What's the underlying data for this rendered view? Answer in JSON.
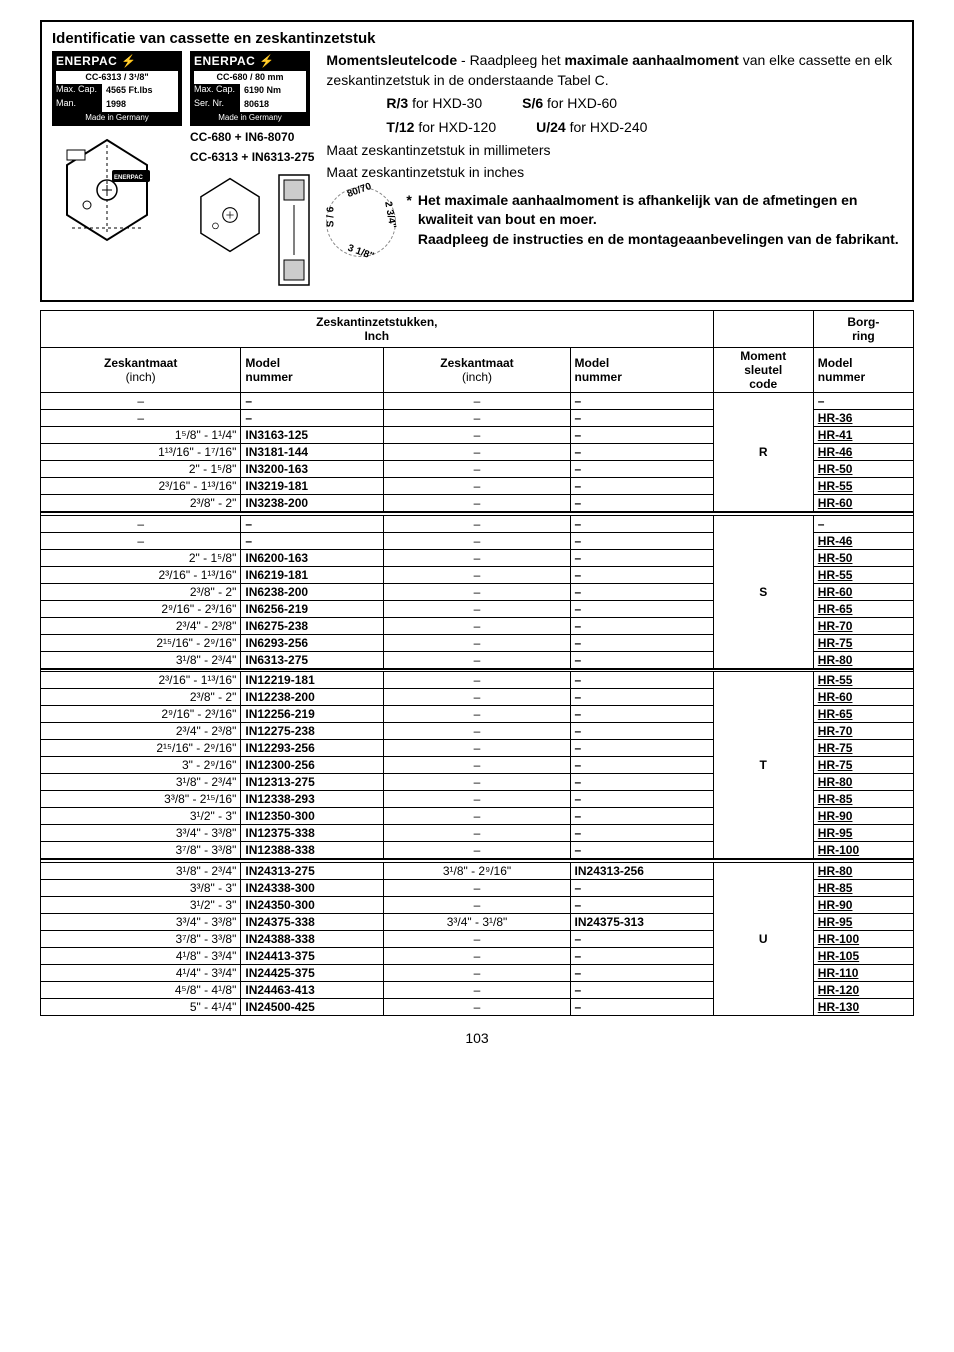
{
  "frame": {
    "title": "Identificatie van cassette en zeskantinzetstuk",
    "label1": {
      "logo": "ENERPAC ⚡",
      "line1_v": "CC-6313 / 3¹/8\"",
      "line2_k": "Max. Cap.",
      "line2_v": "4565 Ft.lbs",
      "line3_k": "Man.",
      "line3_v": "1998",
      "made": "Made in Germany"
    },
    "label2": {
      "logo": "ENERPAC ⚡",
      "line1_v": "CC-680 / 80 mm",
      "line2_k": "Max. Cap.",
      "line2_v": "6190 Nm",
      "line3_k": "Ser. Nr.",
      "line3_v": "80618",
      "made": "Made in Germany"
    },
    "cc1": "CC-680 + IN6-8070",
    "cc2": "CC-6313 + IN6313-275",
    "info_line1a": "Momentsleutelcode",
    "info_line1b": " - Raadpleeg het ",
    "info_line1c": "maximale aanhaalmoment",
    "info_line1d": " van elke cassette en elk zeskantinzetstuk in de onderstaande Tabel C.",
    "codes": {
      "r": "R/3",
      "r_for": " for HXD-30",
      "s": "S/6",
      "s_for": " for HXD-60",
      "t": "T/12",
      "t_for": " for HXD-120",
      "u": "U/24",
      "u_for": " for HXD-240"
    },
    "maat_mm": "Maat zeskantinzetstuk in millimeters",
    "maat_in": "Maat zeskantinzetstuk in inches",
    "dim": {
      "top": "80/70",
      "left": "S / 6",
      "right": "2 3/4\"",
      "bottom": "3 1/8\""
    },
    "star": "*",
    "note": "Het maximale aanhaalmoment is afhankelijk van de afmetingen en kwaliteit van bout en moer.\nRaadpleeg de instructies en de montageaanbevelingen van de fabrikant."
  },
  "table": {
    "hdr_zesk": "Zeskantinzetstukken,\nInch",
    "hdr_borg": "Borg-\nring",
    "col_zesk": "Zeskantmaat",
    "col_inch": "(inch)",
    "col_model": "Model\nnummer",
    "col_moment": "Moment\nsleutel\ncode",
    "groups": [
      {
        "wrench": "R",
        "rows": [
          {
            "s1": "–",
            "m1": "–",
            "s2": "–",
            "m2": "–",
            "r": "–"
          },
          {
            "s1": "–",
            "m1": "–",
            "s2": "–",
            "m2": "–",
            "r": "HR-36"
          },
          {
            "s1": "1⁵/8\" - 1¹/4\"",
            "m1": "IN3163-125",
            "s2": "–",
            "m2": "–",
            "r": "HR-41"
          },
          {
            "s1": "1¹³/16\" - 1⁷/16\"",
            "m1": "IN3181-144",
            "s2": "–",
            "m2": "–",
            "r": "HR-46"
          },
          {
            "s1": "2\" - 1⁵/8\"",
            "m1": "IN3200-163",
            "s2": "–",
            "m2": "–",
            "r": "HR-50"
          },
          {
            "s1": "2³/16\" - 1¹³/16\"",
            "m1": "IN3219-181",
            "s2": "–",
            "m2": "–",
            "r": "HR-55"
          },
          {
            "s1": "2³/8\" - 2\"",
            "m1": "IN3238-200",
            "s2": "–",
            "m2": "–",
            "r": "HR-60"
          }
        ]
      },
      {
        "wrench": "S",
        "rows": [
          {
            "s1": "–",
            "m1": "–",
            "s2": "–",
            "m2": "–",
            "r": "–"
          },
          {
            "s1": "–",
            "m1": "–",
            "s2": "–",
            "m2": "–",
            "r": "HR-46"
          },
          {
            "s1": "2\" - 1⁵/8\"",
            "m1": "IN6200-163",
            "s2": "–",
            "m2": "–",
            "r": "HR-50"
          },
          {
            "s1": "2³/16\" - 1¹³/16\"",
            "m1": "IN6219-181",
            "s2": "–",
            "m2": "–",
            "r": "HR-55"
          },
          {
            "s1": "2³/8\" - 2\"",
            "m1": "IN6238-200",
            "s2": "–",
            "m2": "–",
            "r": "HR-60"
          },
          {
            "s1": "2⁹/16\" - 2³/16\"",
            "m1": "IN6256-219",
            "s2": "–",
            "m2": "–",
            "r": "HR-65"
          },
          {
            "s1": "2³/4\" - 2³/8\"",
            "m1": "IN6275-238",
            "s2": "–",
            "m2": "–",
            "r": "HR-70"
          },
          {
            "s1": "2¹⁵/16\" - 2⁹/16\"",
            "m1": "IN6293-256",
            "s2": "–",
            "m2": "–",
            "r": "HR-75"
          },
          {
            "s1": "3¹/8\" - 2³/4\"",
            "m1": "IN6313-275",
            "s2": "–",
            "m2": "–",
            "r": "HR-80"
          }
        ]
      },
      {
        "wrench": "T",
        "rows": [
          {
            "s1": "2³/16\" - 1¹³/16\"",
            "m1": "IN12219-181",
            "s2": "–",
            "m2": "–",
            "r": "HR-55"
          },
          {
            "s1": "2³/8\" - 2\"",
            "m1": "IN12238-200",
            "s2": "–",
            "m2": "–",
            "r": "HR-60"
          },
          {
            "s1": "2⁹/16\" - 2³/16\"",
            "m1": "IN12256-219",
            "s2": "–",
            "m2": "–",
            "r": "HR-65"
          },
          {
            "s1": "2³/4\" - 2³/8\"",
            "m1": "IN12275-238",
            "s2": "–",
            "m2": "–",
            "r": "HR-70"
          },
          {
            "s1": "2¹⁵/16\" - 2⁹/16\"",
            "m1": "IN12293-256",
            "s2": "–",
            "m2": "–",
            "r": "HR-75"
          },
          {
            "s1": "3\" - 2⁹/16\"",
            "m1": "IN12300-256",
            "s2": "–",
            "m2": "–",
            "r": "HR-75"
          },
          {
            "s1": "3¹/8\" - 2³/4\"",
            "m1": "IN12313-275",
            "s2": "–",
            "m2": "–",
            "r": "HR-80"
          },
          {
            "s1": "3³/8\" - 2¹⁵/16\"",
            "m1": "IN12338-293",
            "s2": "–",
            "m2": "–",
            "r": "HR-85"
          },
          {
            "s1": "3¹/2\" - 3\"",
            "m1": "IN12350-300",
            "s2": "–",
            "m2": "–",
            "r": "HR-90"
          },
          {
            "s1": "3³/4\" - 3³/8\"",
            "m1": "IN12375-338",
            "s2": "–",
            "m2": "–",
            "r": "HR-95"
          },
          {
            "s1": "3⁷/8\" - 3³/8\"",
            "m1": "IN12388-338",
            "s2": "–",
            "m2": "–",
            "r": "HR-100"
          }
        ]
      },
      {
        "wrench": "U",
        "rows": [
          {
            "s1": "3¹/8\" - 2³/4\"",
            "m1": "IN24313-275",
            "s2": "3¹/8\" - 2⁹/16\"",
            "m2": "IN24313-256",
            "r": "HR-80"
          },
          {
            "s1": "3³/8\" - 3\"",
            "m1": "IN24338-300",
            "s2": "–",
            "m2": "–",
            "r": "HR-85"
          },
          {
            "s1": "3¹/2\" - 3\"",
            "m1": "IN24350-300",
            "s2": "–",
            "m2": "–",
            "r": "HR-90"
          },
          {
            "s1": "3³/4\" - 3³/8\"",
            "m1": "IN24375-338",
            "s2": "3³/4\" - 3¹/8\"",
            "m2": "IN24375-313",
            "r": "HR-95"
          },
          {
            "s1": "3⁷/8\" - 3³/8\"",
            "m1": "IN24388-338",
            "s2": "–",
            "m2": "–",
            "r": "HR-100"
          },
          {
            "s1": "4¹/8\" - 3³/4\"",
            "m1": "IN24413-375",
            "s2": "–",
            "m2": "–",
            "r": "HR-105"
          },
          {
            "s1": "4¹/4\" - 3³/4\"",
            "m1": "IN24425-375",
            "s2": "–",
            "m2": "–",
            "r": "HR-110"
          },
          {
            "s1": "4⁵/8\" - 4¹/8\"",
            "m1": "IN24463-413",
            "s2": "–",
            "m2": "–",
            "r": "HR-120"
          },
          {
            "s1": "5\" - 4¹/4\"",
            "m1": "IN24500-425",
            "s2": "–",
            "m2": "–",
            "r": "HR-130"
          }
        ]
      }
    ]
  },
  "page": "103"
}
